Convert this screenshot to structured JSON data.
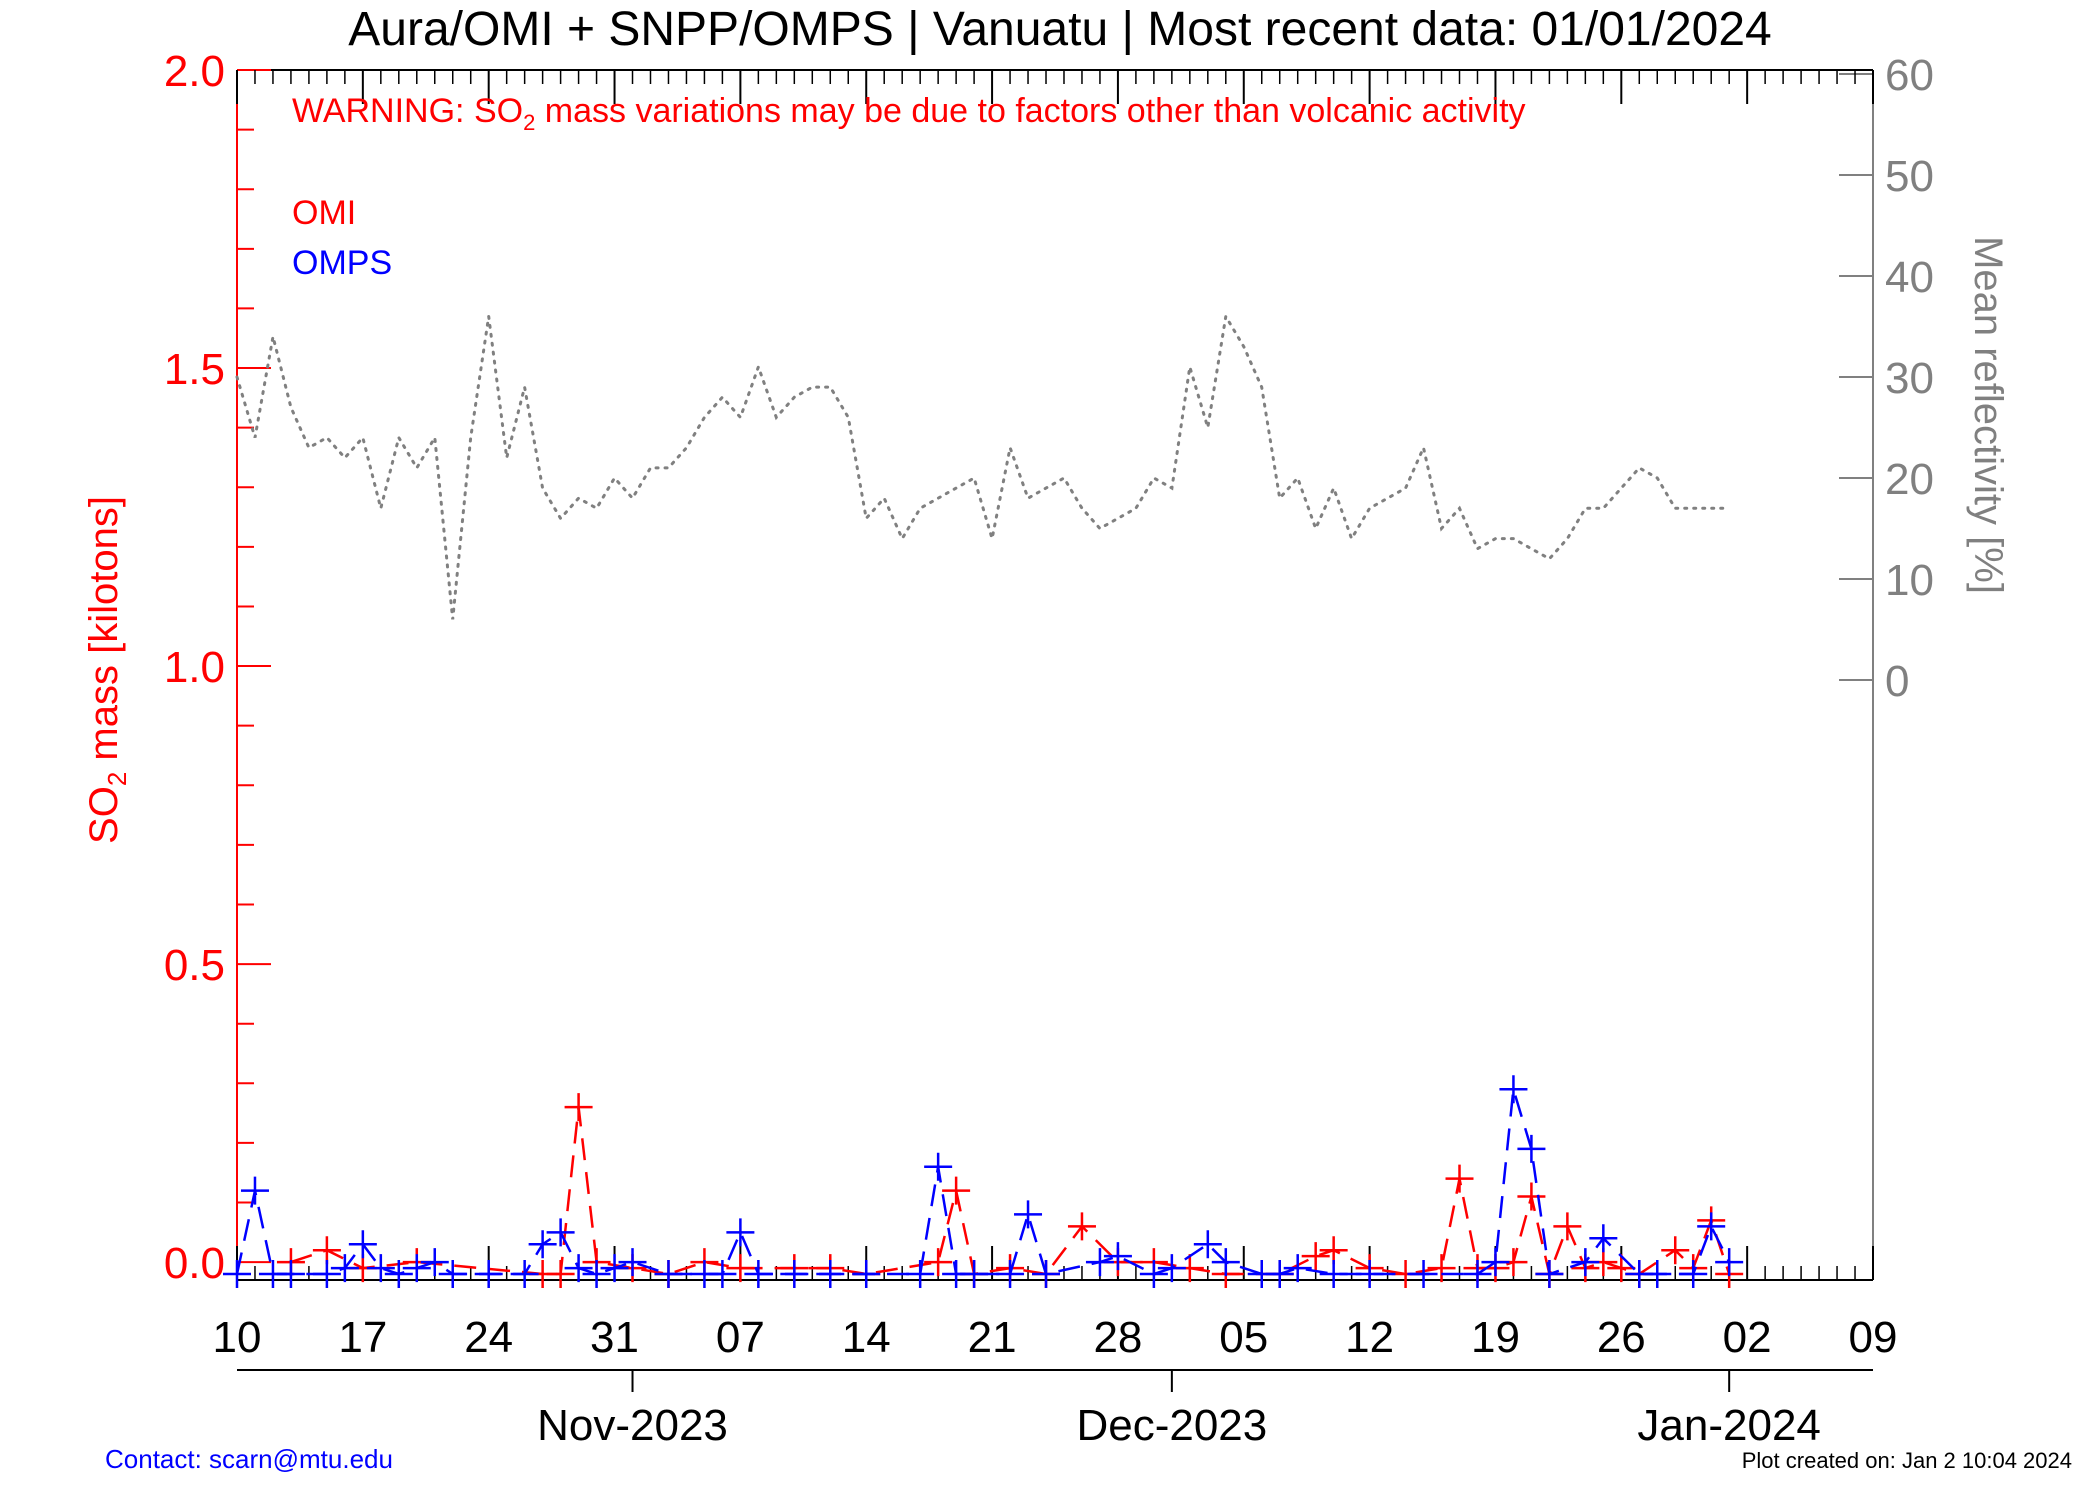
{
  "chart_data": {
    "type": "line",
    "title": "Aura/OMI + SNPP/OMPS | Vanuatu | Most recent data: 01/01/2024",
    "warning": {
      "prefix": "WARNING: SO",
      "sub": "2",
      "suffix": " mass variations may be due to factors other than volcanic activity"
    },
    "ylabel_left": {
      "prefix": "SO",
      "sub": "2",
      "suffix": " mass [kilotons]"
    },
    "ylabel_right": "Mean reflectivity [%]",
    "y_left_range": [
      -0.03,
      2.0
    ],
    "y_left_ticks": [
      "0.0",
      "0.5",
      "1.0",
      "1.5",
      "2.0"
    ],
    "y_right_range_shown": [
      0,
      60
    ],
    "y_right_ticks": [
      "0",
      "10",
      "20",
      "30",
      "40",
      "50",
      "60"
    ],
    "x_start": "2023-10-10",
    "x_end": "2024-01-09",
    "x_ticks": [
      "10",
      "17",
      "24",
      "31",
      "07",
      "14",
      "21",
      "28",
      "05",
      "12",
      "19",
      "26",
      "02",
      "09"
    ],
    "months": [
      "Nov-2023",
      "Dec-2023",
      "Jan-2024"
    ],
    "legend": [
      {
        "name": "OMI",
        "color": "#ff0000"
      },
      {
        "name": "OMPS",
        "color": "#0000ff"
      }
    ],
    "colors": {
      "omi": "#ff0000",
      "omps": "#0000ff",
      "reflectivity": "#808080",
      "axis_right": "#808080"
    },
    "series": [
      {
        "name": "OMI",
        "x": [
          "2023-10-13",
          "2023-10-15",
          "2023-10-17",
          "2023-10-20",
          "2023-10-27",
          "2023-10-28",
          "2023-10-29",
          "2023-10-30",
          "2023-11-01",
          "2023-11-03",
          "2023-11-05",
          "2023-11-07",
          "2023-11-10",
          "2023-11-12",
          "2023-11-14",
          "2023-11-18",
          "2023-11-19",
          "2023-11-20",
          "2023-11-22",
          "2023-11-24",
          "2023-11-26",
          "2023-11-28",
          "2023-11-30",
          "2023-12-02",
          "2023-12-04",
          "2023-12-07",
          "2023-12-09",
          "2023-12-10",
          "2023-12-12",
          "2023-12-14",
          "2023-12-16",
          "2023-12-17",
          "2023-12-18",
          "2023-12-19",
          "2023-12-20",
          "2023-12-21",
          "2023-12-22",
          "2023-12-23",
          "2023-12-24",
          "2023-12-25",
          "2023-12-26",
          "2023-12-27",
          "2023-12-29",
          "2023-12-30",
          "2023-12-31",
          "2024-01-01"
        ],
        "values": [
          0.0,
          0.02,
          -0.01,
          0.0,
          -0.02,
          -0.02,
          0.26,
          0.0,
          -0.01,
          -0.02,
          0.0,
          -0.01,
          -0.01,
          -0.01,
          -0.02,
          0.0,
          0.12,
          -0.02,
          -0.01,
          -0.02,
          0.06,
          0.0,
          0.0,
          -0.01,
          -0.02,
          -0.02,
          0.01,
          0.02,
          -0.01,
          -0.02,
          -0.01,
          0.14,
          -0.01,
          -0.01,
          0.0,
          0.11,
          -0.02,
          0.06,
          -0.01,
          0.0,
          -0.01,
          -0.02,
          0.02,
          -0.01,
          0.07,
          -0.02
        ]
      },
      {
        "name": "OMPS",
        "x": [
          "2023-10-10",
          "2023-10-11",
          "2023-10-12",
          "2023-10-13",
          "2023-10-15",
          "2023-10-16",
          "2023-10-17",
          "2023-10-18",
          "2023-10-19",
          "2023-10-20",
          "2023-10-21",
          "2023-10-22",
          "2023-10-24",
          "2023-10-26",
          "2023-10-27",
          "2023-10-28",
          "2023-10-29",
          "2023-10-30",
          "2023-10-31",
          "2023-11-01",
          "2023-11-03",
          "2023-11-05",
          "2023-11-06",
          "2023-11-07",
          "2023-11-08",
          "2023-11-10",
          "2023-11-12",
          "2023-11-14",
          "2023-11-17",
          "2023-11-18",
          "2023-11-19",
          "2023-11-20",
          "2023-11-22",
          "2023-11-23",
          "2023-11-24",
          "2023-11-27",
          "2023-11-28",
          "2023-11-30",
          "2023-12-01",
          "2023-12-03",
          "2023-12-04",
          "2023-12-06",
          "2023-12-07",
          "2023-12-08",
          "2023-12-10",
          "2023-12-12",
          "2023-12-15",
          "2023-12-18",
          "2023-12-19",
          "2023-12-20",
          "2023-12-21",
          "2023-12-22",
          "2023-12-24",
          "2023-12-25",
          "2023-12-27",
          "2023-12-28",
          "2023-12-30",
          "2023-12-31",
          "2024-01-01"
        ],
        "values": [
          -0.02,
          0.12,
          -0.02,
          -0.02,
          -0.02,
          -0.01,
          0.03,
          -0.01,
          -0.02,
          -0.01,
          0.0,
          -0.02,
          -0.02,
          -0.02,
          0.03,
          0.05,
          -0.01,
          -0.02,
          -0.01,
          0.0,
          -0.02,
          -0.02,
          -0.02,
          0.05,
          -0.02,
          -0.02,
          -0.02,
          -0.02,
          -0.02,
          0.16,
          -0.02,
          -0.02,
          -0.02,
          0.08,
          -0.02,
          0.0,
          0.01,
          -0.02,
          -0.01,
          0.03,
          0.0,
          -0.02,
          -0.02,
          -0.01,
          -0.02,
          -0.02,
          -0.02,
          -0.02,
          0.0,
          0.29,
          0.19,
          -0.02,
          0.0,
          0.04,
          -0.02,
          -0.02,
          -0.02,
          0.06,
          0.0
        ]
      },
      {
        "name": "Mean reflectivity",
        "x": [
          "2023-10-10",
          "2023-10-11",
          "2023-10-12",
          "2023-10-13",
          "2023-10-14",
          "2023-10-15",
          "2023-10-16",
          "2023-10-17",
          "2023-10-18",
          "2023-10-19",
          "2023-10-20",
          "2023-10-21",
          "2023-10-22",
          "2023-10-23",
          "2023-10-24",
          "2023-10-25",
          "2023-10-26",
          "2023-10-27",
          "2023-10-28",
          "2023-10-29",
          "2023-10-30",
          "2023-10-31",
          "2023-11-01",
          "2023-11-02",
          "2023-11-03",
          "2023-11-04",
          "2023-11-05",
          "2023-11-06",
          "2023-11-07",
          "2023-11-08",
          "2023-11-09",
          "2023-11-10",
          "2023-11-11",
          "2023-11-12",
          "2023-11-13",
          "2023-11-14",
          "2023-11-15",
          "2023-11-16",
          "2023-11-17",
          "2023-11-18",
          "2023-11-19",
          "2023-11-20",
          "2023-11-21",
          "2023-11-22",
          "2023-11-23",
          "2023-11-24",
          "2023-11-25",
          "2023-11-26",
          "2023-11-27",
          "2023-11-28",
          "2023-11-29",
          "2023-11-30",
          "2023-12-01",
          "2023-12-02",
          "2023-12-03",
          "2023-12-04",
          "2023-12-05",
          "2023-12-06",
          "2023-12-07",
          "2023-12-08",
          "2023-12-09",
          "2023-12-10",
          "2023-12-11",
          "2023-12-12",
          "2023-12-13",
          "2023-12-14",
          "2023-12-15",
          "2023-12-16",
          "2023-12-17",
          "2023-12-18",
          "2023-12-19",
          "2023-12-20",
          "2023-12-21",
          "2023-12-22",
          "2023-12-23",
          "2023-12-24",
          "2023-12-25",
          "2023-12-26",
          "2023-12-27",
          "2023-12-28",
          "2023-12-29",
          "2023-12-30",
          "2023-12-31",
          "2024-01-01"
        ],
        "values": [
          30,
          24,
          34,
          27,
          23,
          24,
          22,
          24,
          17,
          24,
          21,
          24,
          6,
          24,
          36,
          22,
          29,
          19,
          16,
          18,
          17,
          20,
          18,
          21,
          21,
          23,
          26,
          28,
          26,
          31,
          26,
          28,
          29,
          29,
          26,
          16,
          18,
          14,
          17,
          18,
          19,
          20,
          14,
          23,
          18,
          19,
          20,
          17,
          15,
          16,
          17,
          20,
          19,
          31,
          25,
          36,
          33,
          29,
          18,
          20,
          15,
          19,
          14,
          17,
          18,
          19,
          23,
          15,
          17,
          13,
          14,
          14,
          13,
          12,
          14,
          17,
          17,
          19,
          21,
          20,
          17,
          17,
          17,
          17
        ],
        "note": "right axis, percent"
      }
    ],
    "grid": false
  },
  "footer": {
    "contact": "Contact: scarn@mtu.edu",
    "created": "Plot created on: Jan  2 10:04 2024"
  }
}
